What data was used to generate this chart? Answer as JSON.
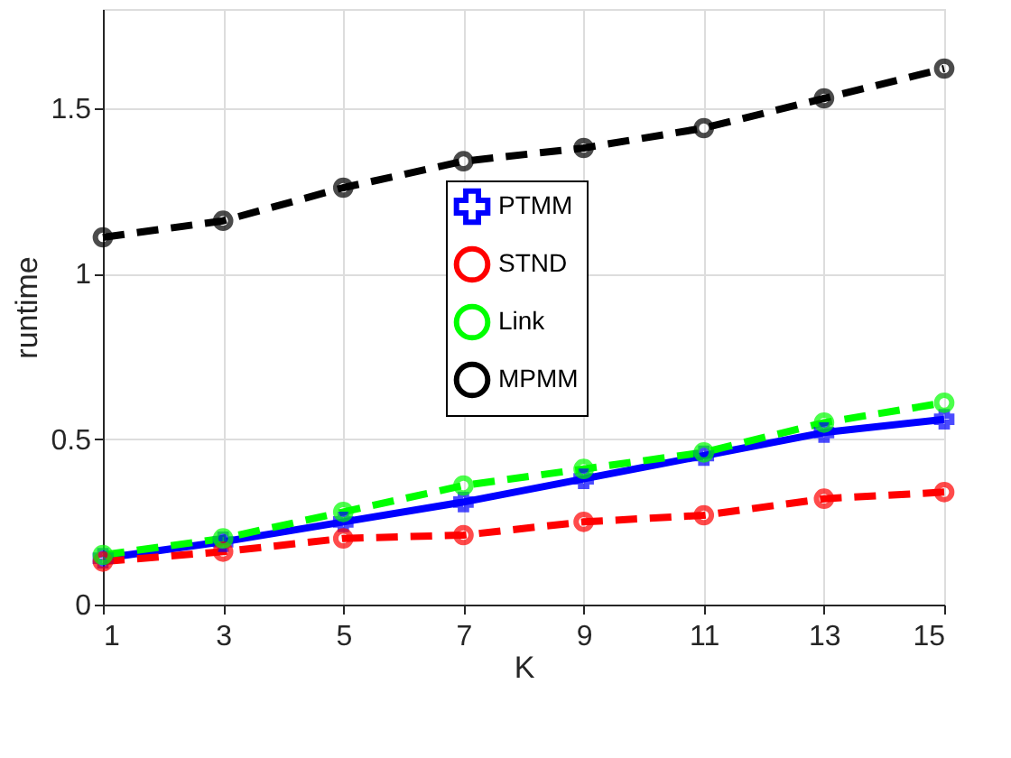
{
  "chart_data": {
    "type": "line",
    "xlabel": "K",
    "ylabel": "runtime",
    "x": [
      1,
      3,
      5,
      7,
      9,
      11,
      13,
      15
    ],
    "xlim": [
      1,
      15
    ],
    "xticks": [
      1,
      3,
      5,
      7,
      9,
      11,
      13,
      15
    ],
    "ylim": [
      0,
      1.8
    ],
    "yticks": [
      0,
      0.5,
      1,
      1.5
    ],
    "grid": true,
    "legend": "center",
    "series": [
      {
        "name": "PTMM",
        "color": "#0000ff",
        "marker": "cross",
        "line_style": "solid",
        "values": [
          0.14,
          0.19,
          0.25,
          0.31,
          0.38,
          0.45,
          0.52,
          0.56
        ]
      },
      {
        "name": "STND",
        "color": "#ff0000",
        "marker": "circle",
        "line_style": "dashed",
        "values": [
          0.13,
          0.16,
          0.2,
          0.21,
          0.25,
          0.27,
          0.32,
          0.34
        ]
      },
      {
        "name": "Link",
        "color": "#00ff00",
        "marker": "circle",
        "line_style": "dashed",
        "values": [
          0.15,
          0.2,
          0.28,
          0.36,
          0.41,
          0.46,
          0.55,
          0.61
        ]
      },
      {
        "name": "MPMM",
        "color": "#000000",
        "marker": "circle",
        "line_style": "dashed",
        "values": [
          1.11,
          1.16,
          1.26,
          1.34,
          1.38,
          1.44,
          1.53,
          1.62
        ]
      }
    ]
  }
}
